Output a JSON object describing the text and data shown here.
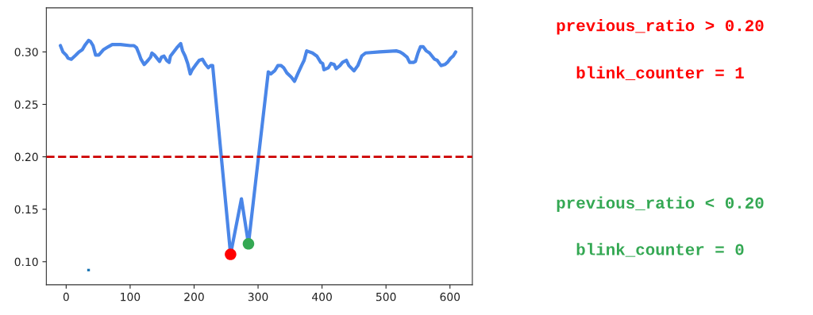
{
  "chart_data": {
    "type": "line",
    "xlim": [
      -31,
      635
    ],
    "ylim": [
      0.078,
      0.342
    ],
    "xticks": [
      0,
      100,
      200,
      300,
      400,
      500,
      600
    ],
    "yticks": [
      {
        "value": 0.1,
        "label": "0.10"
      },
      {
        "value": 0.15,
        "label": "0.15"
      },
      {
        "value": 0.2,
        "label": "0.20"
      },
      {
        "value": 0.25,
        "label": "0.25"
      },
      {
        "value": 0.3,
        "label": "0.30"
      }
    ],
    "grid": false,
    "legend": false,
    "series": [
      {
        "color": "#4a86e8",
        "x": [
          -9,
          -5,
          0,
          3,
          8,
          15,
          20,
          25,
          30,
          35,
          38,
          42,
          46,
          51,
          58,
          66,
          72,
          85,
          100,
          106,
          110,
          114,
          117,
          122,
          128,
          132,
          134,
          138,
          142,
          146,
          149,
          153,
          157,
          161,
          163,
          168,
          173,
          179,
          182,
          186,
          190,
          194,
          197,
          203,
          208,
          213,
          218,
          222,
          226,
          229,
          257,
          274,
          285,
          316,
          320,
          326,
          331,
          336,
          340,
          345,
          352,
          357,
          362,
          368,
          372,
          376,
          385,
          392,
          398,
          401,
          403,
          410,
          414,
          419,
          422,
          428,
          432,
          438,
          442,
          450,
          456,
          462,
          468,
          490,
          516,
          522,
          527,
          533,
          537,
          543,
          546,
          550,
          554,
          558,
          563,
          568,
          572,
          576,
          580,
          586,
          592,
          596,
          601,
          605,
          609
        ],
        "values": [
          0.306,
          0.3,
          0.297,
          0.294,
          0.293,
          0.297,
          0.3,
          0.302,
          0.307,
          0.311,
          0.31,
          0.306,
          0.297,
          0.297,
          0.302,
          0.305,
          0.307,
          0.307,
          0.306,
          0.306,
          0.304,
          0.298,
          0.293,
          0.288,
          0.292,
          0.295,
          0.299,
          0.297,
          0.294,
          0.291,
          0.295,
          0.296,
          0.292,
          0.29,
          0.296,
          0.3,
          0.304,
          0.308,
          0.301,
          0.296,
          0.289,
          0.279,
          0.283,
          0.288,
          0.292,
          0.293,
          0.288,
          0.285,
          0.287,
          0.287,
          0.107,
          0.16,
          0.117,
          0.281,
          0.279,
          0.282,
          0.287,
          0.287,
          0.285,
          0.28,
          0.276,
          0.272,
          0.279,
          0.287,
          0.292,
          0.301,
          0.299,
          0.296,
          0.29,
          0.289,
          0.283,
          0.285,
          0.289,
          0.288,
          0.284,
          0.287,
          0.29,
          0.292,
          0.287,
          0.282,
          0.287,
          0.296,
          0.299,
          0.3,
          0.301,
          0.3,
          0.298,
          0.295,
          0.29,
          0.29,
          0.291,
          0.299,
          0.305,
          0.305,
          0.301,
          0.299,
          0.296,
          0.293,
          0.292,
          0.287,
          0.288,
          0.29,
          0.294,
          0.296,
          0.3
        ]
      },
      {
        "type": "scatter",
        "color": "#1f77b4",
        "marker": "square",
        "x": [
          35
        ],
        "values": [
          0.092
        ]
      },
      {
        "type": "scatter",
        "color": "#ff0000",
        "marker": "circle",
        "x": [
          257
        ],
        "values": [
          0.107
        ]
      },
      {
        "type": "scatter",
        "color": "#34a853",
        "marker": "circle",
        "x": [
          285
        ],
        "values": [
          0.117
        ]
      }
    ],
    "ref_lines": [
      {
        "axis": "y",
        "value": 0.2,
        "color": "#cc0000",
        "line_style": "dashed"
      }
    ],
    "annotations": [
      "previous_ratio > 0.20",
      "blink_counter = 1",
      "previous_ratio < 0.20",
      "blink_counter = 0"
    ]
  }
}
